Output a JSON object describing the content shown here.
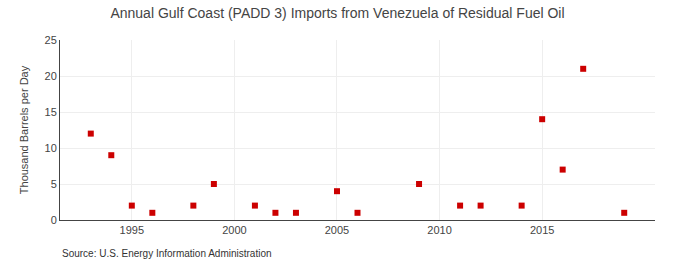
{
  "chart_data": {
    "type": "scatter",
    "title": "Annual Gulf Coast (PADD 3) Imports from Venezuela of Residual Fuel Oil",
    "ylabel": "Thousand Barrels per Day",
    "annotations": [
      "Source: U.S. Energy Information Administration"
    ],
    "x": [
      1993,
      1994,
      1995,
      1996,
      1998,
      1999,
      2001,
      2002,
      2003,
      2005,
      2006,
      2009,
      2011,
      2012,
      2014,
      2015,
      2016,
      2017,
      2019
    ],
    "values": [
      12,
      9,
      2,
      1,
      2,
      5,
      2,
      1,
      1,
      4,
      1,
      5,
      2,
      2,
      2,
      14,
      7,
      21,
      1
    ],
    "color": "#cc0000",
    "marker": "square",
    "xlim": [
      1991.5,
      2020.5
    ],
    "ylim": [
      0,
      25
    ],
    "xticks": [
      1995,
      2000,
      2005,
      2010,
      2015
    ],
    "yticks": [
      0,
      5,
      10,
      15,
      20,
      25
    ],
    "grid": true
  }
}
